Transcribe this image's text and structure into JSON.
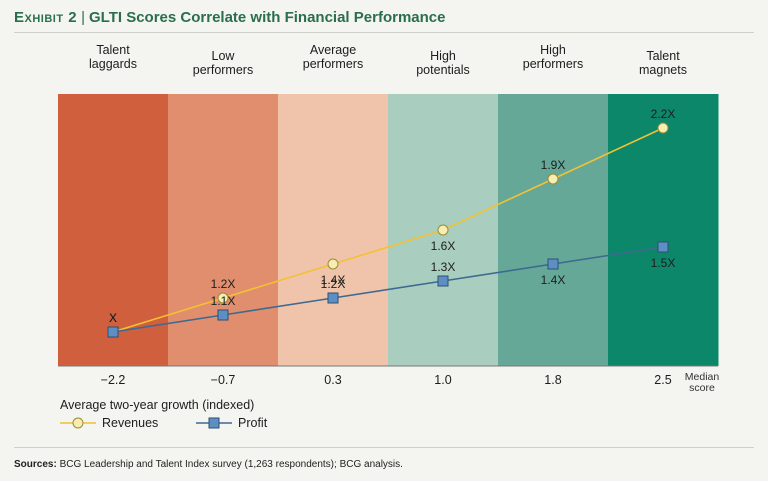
{
  "header": {
    "exhibit": "Exhibit 2",
    "separator": "|",
    "title": "GLTI Scores Correlate with Financial Performance"
  },
  "chart_data": {
    "type": "line",
    "categories": [
      {
        "label_lines": [
          "Talent",
          "laggards"
        ],
        "score": "−2.2",
        "color": "#d0603d"
      },
      {
        "label_lines": [
          "Low",
          "performers"
        ],
        "score": "−0.7",
        "color": "#e08e6d"
      },
      {
        "label_lines": [
          "Average",
          "performers"
        ],
        "score": "0.3",
        "color": "#f0c4ab"
      },
      {
        "label_lines": [
          "High",
          "potentials"
        ],
        "score": "1.0",
        "color": "#a9cdbe"
      },
      {
        "label_lines": [
          "High",
          "performers"
        ],
        "score": "1.8",
        "color": "#66a898"
      },
      {
        "label_lines": [
          "Talent",
          "magnets"
        ],
        "score": "2.5",
        "color": "#0c876a"
      }
    ],
    "axis_note": [
      "Median",
      "score"
    ],
    "ylim": [
      0.8,
      2.4
    ],
    "series": [
      {
        "name": "Revenues",
        "values": [
          1.0,
          1.2,
          1.4,
          1.6,
          1.9,
          2.2
        ],
        "labels": [
          "X",
          "1.2X",
          "1.4X",
          "1.6X",
          "1.9X",
          "2.2X"
        ],
        "label_pos": [
          "above",
          "above",
          "below",
          "below",
          "above",
          "above"
        ],
        "color": "#f2c232",
        "marker": "circle",
        "marker_fill": "#f6eeb0"
      },
      {
        "name": "Profit",
        "values": [
          1.0,
          1.1,
          1.2,
          1.3,
          1.4,
          1.5
        ],
        "labels": [
          "X",
          "1.1X",
          "1.2X",
          "1.3X",
          "1.4X",
          "1.5X"
        ],
        "label_pos": [
          "above",
          "above",
          "above",
          "above",
          "below",
          "below"
        ],
        "color": "#3d6a91",
        "marker": "square",
        "marker_fill": "#5e8fc4"
      }
    ],
    "legend": {
      "title": "Average two-year growth (indexed)",
      "placement": "bottom-left"
    }
  },
  "footer": {
    "source_label": "Sources:",
    "source_text": "BCG Leadership and Talent Index survey (1,263 respondents); BCG analysis."
  }
}
